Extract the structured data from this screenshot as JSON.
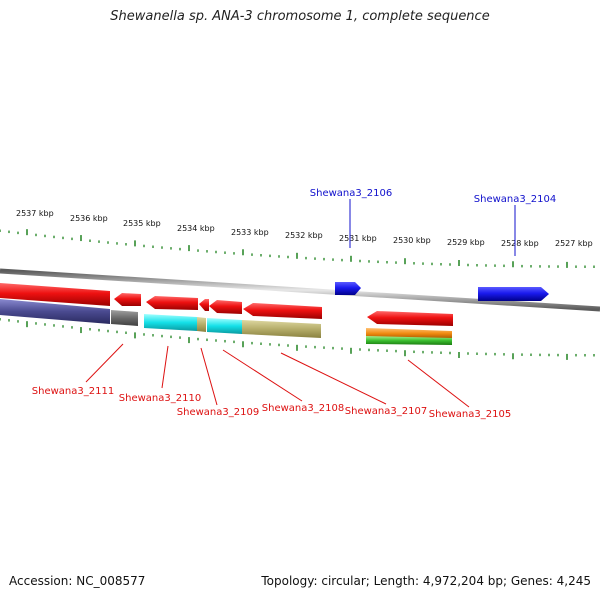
{
  "title": "Shewanella sp. ANA-3 chromosome 1, complete sequence",
  "footer": {
    "accession": "Accession: NC_008577",
    "summary": "Topology: circular; Length: 4,972,204 bp; Genes: 4,245"
  },
  "ruler": {
    "labels": [
      "2537 kbp",
      "2536 kbp",
      "2535 kbp",
      "2534 kbp",
      "2533 kbp",
      "2532 kbp",
      "2531 kbp",
      "2530 kbp",
      "2529 kbp",
      "2528 kbp",
      "2527 kbp"
    ]
  },
  "genes_top": [
    {
      "name": "Shewana3_2106",
      "color": "#1010cc"
    },
    {
      "name": "Shewana3_2104",
      "color": "#1010cc"
    }
  ],
  "genes_bottom": [
    {
      "name": "Shewana3_2111",
      "color": "#dd1111"
    },
    {
      "name": "Shewana3_2110",
      "color": "#dd1111"
    },
    {
      "name": "Shewana3_2109",
      "color": "#dd1111"
    },
    {
      "name": "Shewana3_2108",
      "color": "#dd1111"
    },
    {
      "name": "Shewana3_2107",
      "color": "#dd1111"
    },
    {
      "name": "Shewana3_2105",
      "color": "#dd1111"
    }
  ],
  "colors": {
    "tick": "#2e8b2e",
    "forward_gene": "#1a1aee",
    "reverse_gene": "#ee1111",
    "backbone": "#8a8a8a"
  }
}
